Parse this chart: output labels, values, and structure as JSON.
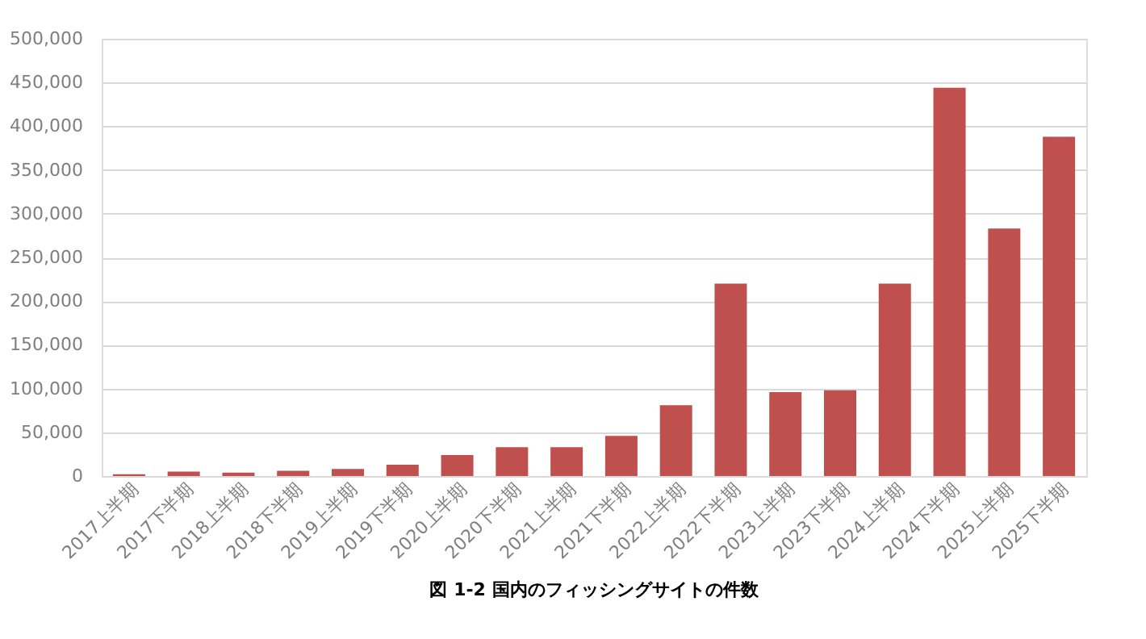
{
  "chart_data": {
    "type": "bar",
    "title": "図 1-2 国内のフィッシングサイトの件数",
    "categories": [
      "2017上半期",
      "2017下半期",
      "2018上半期",
      "2018下半期",
      "2019上半期",
      "2019下半期",
      "2020上半期",
      "2020下半期",
      "2021上半期",
      "2021下半期",
      "2022上半期",
      "2022下半期",
      "2023上半期",
      "2023下半期",
      "2024上半期",
      "2024下半期",
      "2025上半期",
      "2025下半期"
    ],
    "values": [
      2000,
      5000,
      4000,
      6000,
      8000,
      13000,
      24000,
      33000,
      33000,
      46000,
      81000,
      220000,
      96000,
      98000,
      220000,
      444000,
      283000,
      388000
    ],
    "color": "#c0504d",
    "ylim": [
      0,
      500000
    ],
    "yticks": [
      {
        "value": 0,
        "label": "0"
      },
      {
        "value": 50000,
        "label": "50,000"
      },
      {
        "value": 100000,
        "label": "100,000"
      },
      {
        "value": 150000,
        "label": "150,000"
      },
      {
        "value": 200000,
        "label": "200,000"
      },
      {
        "value": 250000,
        "label": "250,000"
      },
      {
        "value": 300000,
        "label": "300,000"
      },
      {
        "value": 350000,
        "label": "350,000"
      },
      {
        "value": 400000,
        "label": "400,000"
      },
      {
        "value": 450000,
        "label": "450,000"
      },
      {
        "value": 500000,
        "label": "500,000"
      }
    ],
    "grid": "y"
  }
}
